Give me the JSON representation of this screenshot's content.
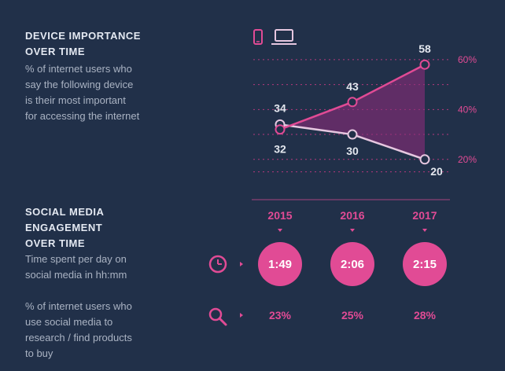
{
  "section1": {
    "title_line1": "DEVICE IMPORTANCE",
    "title_line2": "OVER TIME",
    "desc_lines": [
      "% of internet users who",
      "say the following device",
      "is their most important",
      "for accessing the internet"
    ]
  },
  "section2": {
    "title_lines": [
      "SOCIAL MEDIA",
      "ENGAGEMENT",
      "OVER TIME"
    ],
    "time_desc_lines": [
      "Time spent per day on",
      "social media in hh:mm"
    ],
    "research_desc_lines": [
      "% of internet users who",
      "use social media to",
      "research / find products",
      "to buy"
    ]
  },
  "icons": {
    "smartphone": "smartphone-icon",
    "laptop": "laptop-icon",
    "clock": "clock-icon",
    "search": "search-icon"
  },
  "colors": {
    "background": "#213049",
    "accent": "#e14b95",
    "laptop_line": "#e6c7e0",
    "text": "#e4e9f2"
  },
  "chart_data": {
    "type": "line",
    "categories": [
      "2015",
      "2016",
      "2017"
    ],
    "series": [
      {
        "name": "smartphone",
        "values": [
          32,
          43,
          58
        ],
        "labels": [
          "32",
          "43",
          "58"
        ]
      },
      {
        "name": "laptop",
        "values": [
          34,
          30,
          20
        ],
        "labels": [
          "34",
          "30",
          "20"
        ]
      }
    ],
    "yticks": [
      "20%",
      "40%",
      "60%"
    ],
    "ylim": [
      13,
      65
    ],
    "fill_between": true,
    "grid": true
  },
  "social": {
    "years": [
      "2015",
      "2016",
      "2017"
    ],
    "time_spent": [
      "1:49",
      "2:06",
      "2:15"
    ],
    "research_pct": [
      "23%",
      "25%",
      "28%"
    ]
  }
}
